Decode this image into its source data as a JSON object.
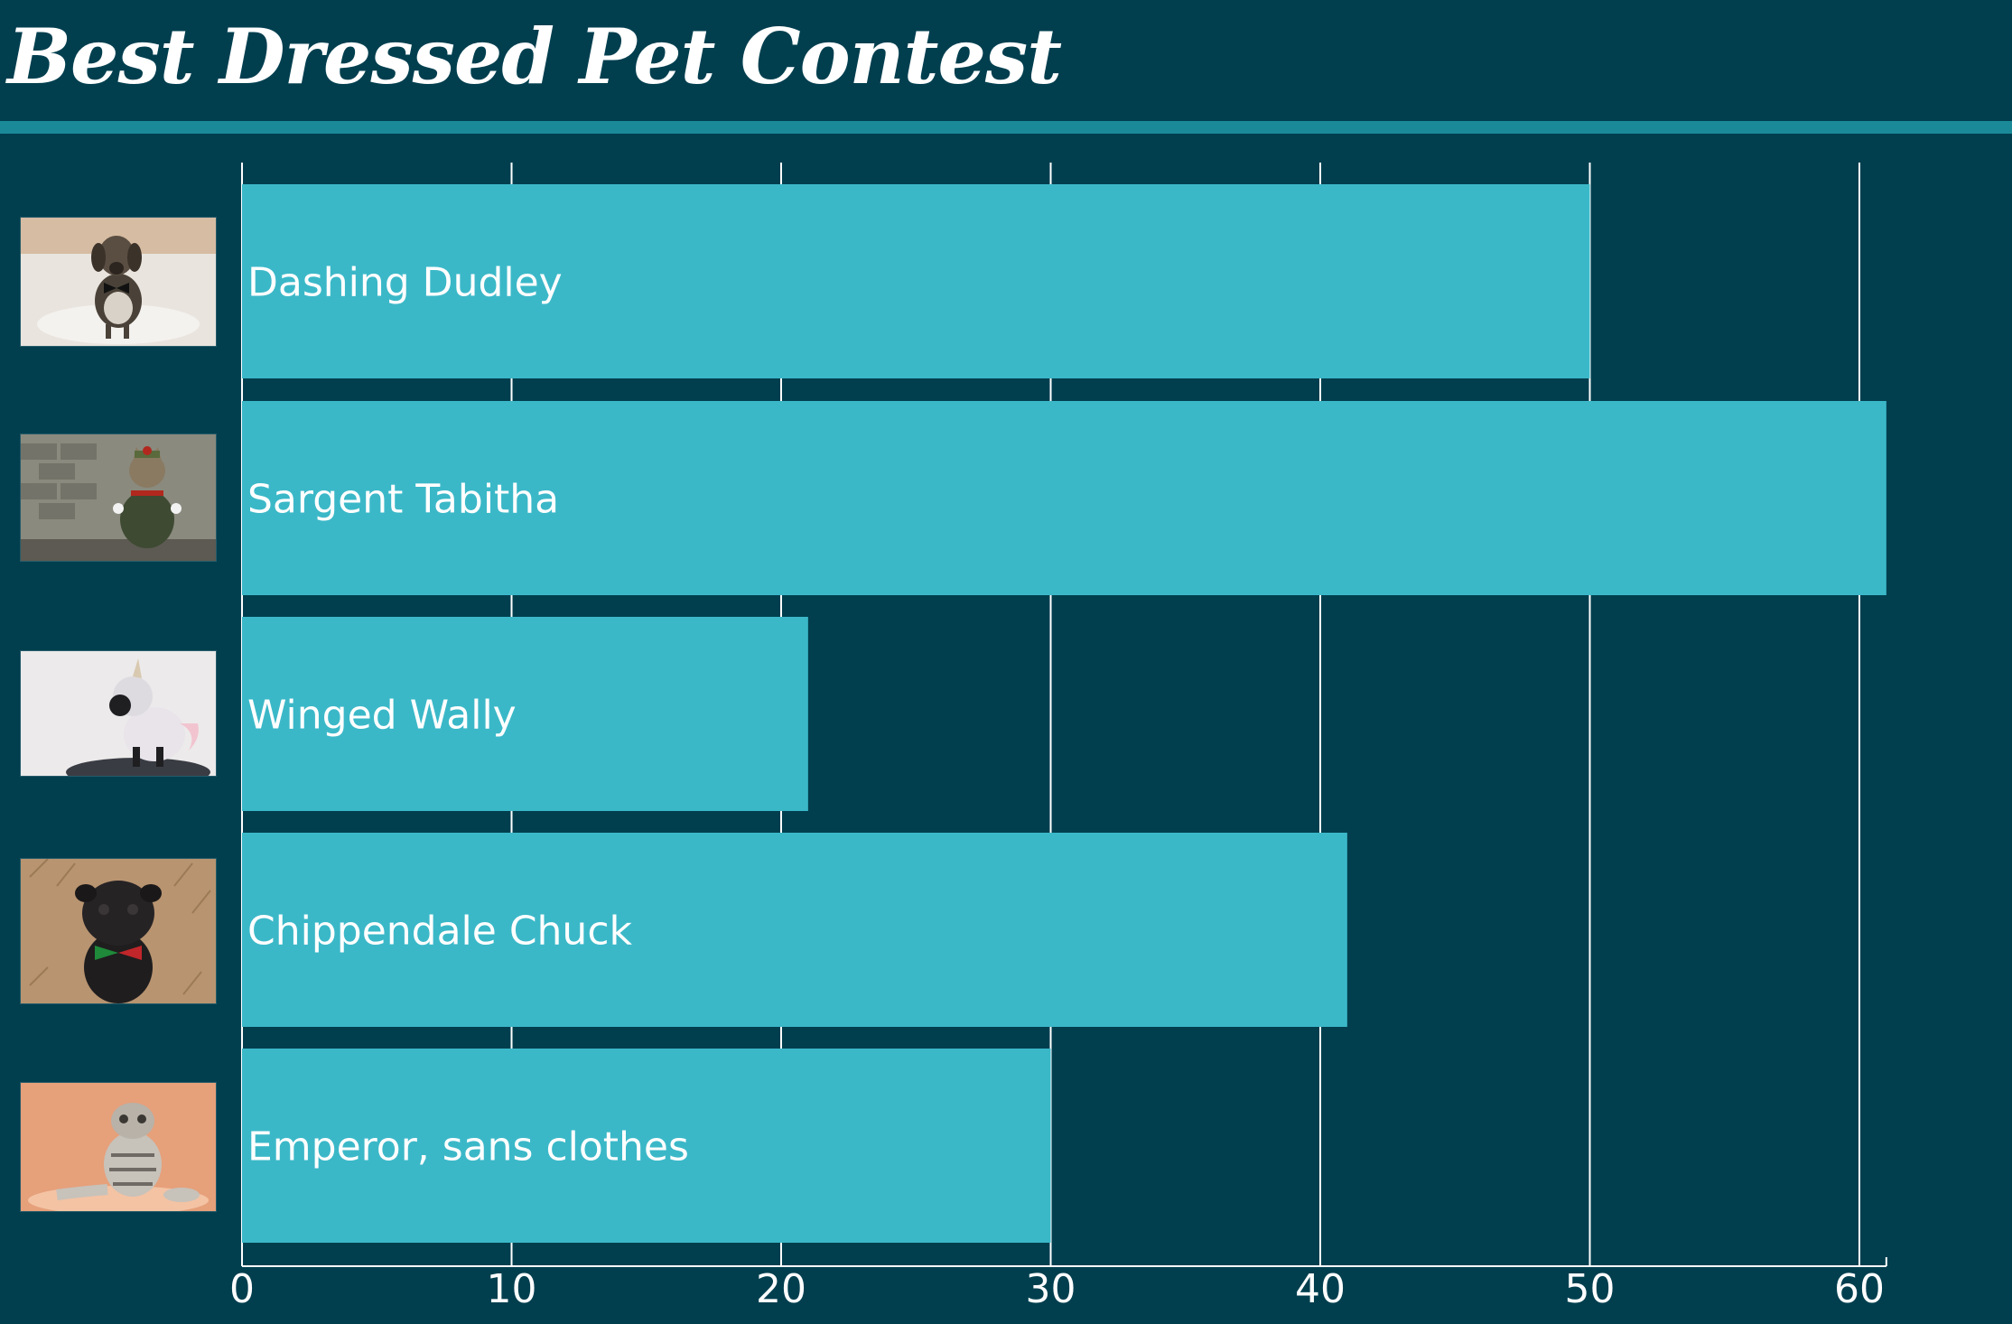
{
  "title": "Best Dressed Pet Contest",
  "colors": {
    "background": "#013f4f",
    "bar": "#3bb8c8",
    "text": "#ffffff",
    "grid": "#ffffff",
    "accent_rule": "#1a8a99"
  },
  "pets": [
    {
      "name": "Dashing Dudley",
      "photo_icon": "dachshund-bowtie-photo"
    },
    {
      "name": "Sargent Tabitha",
      "photo_icon": "cat-soldier-photo"
    },
    {
      "name": "Winged Wally",
      "photo_icon": "pug-unicorn-photo"
    },
    {
      "name": "Chippendale Chuck",
      "photo_icon": "pug-bowtie-photo"
    },
    {
      "name": "Emperor, sans clothes",
      "photo_icon": "cat-sitting-photo"
    }
  ],
  "chart_data": {
    "type": "bar",
    "orientation": "horizontal",
    "title": "Best Dressed Pet Contest",
    "categories": [
      "Dashing Dudley",
      "Sargent Tabitha",
      "Winged Wally",
      "Chippendale Chuck",
      "Emperor, sans clothes"
    ],
    "values": [
      50,
      61,
      21,
      41,
      30
    ],
    "xlim": [
      0,
      61
    ],
    "xticks": [
      "0",
      "10",
      "20",
      "30",
      "40",
      "50",
      "60"
    ],
    "xtick_values": [
      0,
      10,
      20,
      30,
      40,
      50,
      60
    ],
    "grid": "vertical",
    "legend": "none"
  }
}
